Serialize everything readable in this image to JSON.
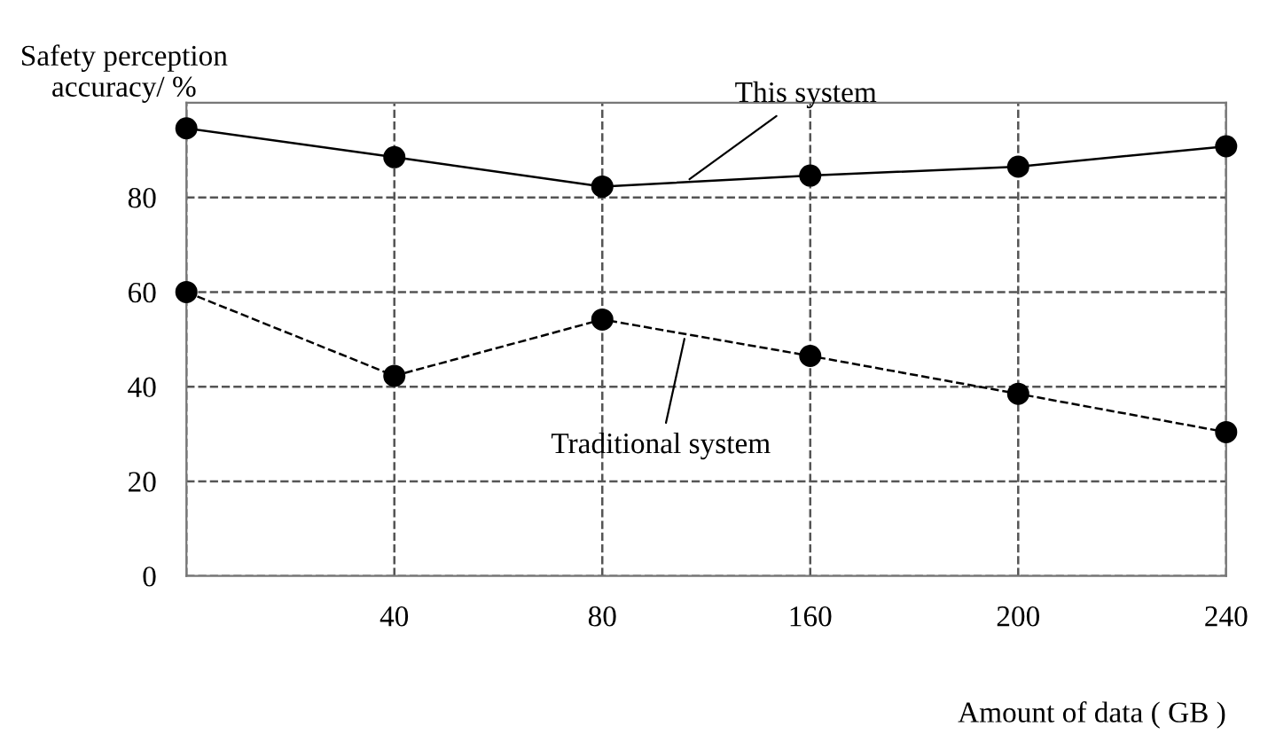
{
  "chart_data": {
    "type": "line",
    "xlabel": "Amount of data ( GB )",
    "ylabel": "Safety perception\naccuracy/ %",
    "categories": [
      null,
      "40",
      "80",
      "160",
      "200",
      "240"
    ],
    "series": [
      {
        "name": "This system",
        "color": "#000000",
        "line_style": "solid",
        "values": [
          94.6,
          88.5,
          82.3,
          84.6,
          86.5,
          90.8
        ]
      },
      {
        "name": "Traditional system",
        "color": "#000000",
        "line_style": "dashed",
        "values": [
          60,
          42.3,
          54.2,
          46.5,
          38.5,
          30.4
        ]
      }
    ],
    "ylim": [
      0,
      100
    ],
    "yticks": [
      0,
      20,
      40,
      60,
      80
    ],
    "grid": true,
    "legend": false,
    "marker": "circle"
  }
}
